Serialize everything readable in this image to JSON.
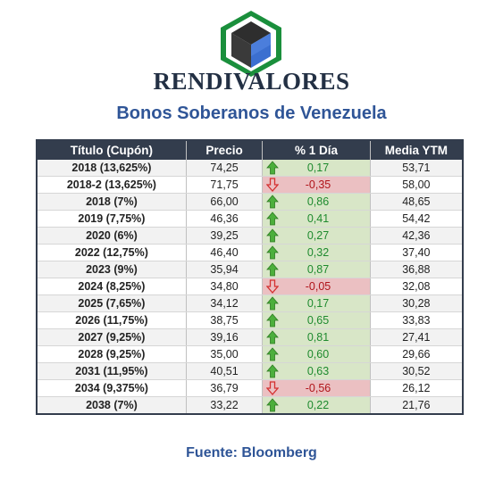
{
  "brand": {
    "name": "RENDIVALORES"
  },
  "title": "Bonos Soberanos de Venezuela",
  "table": {
    "headers": [
      "Título (Cupón)",
      "Precio",
      "% 1 Día",
      "Media YTM"
    ],
    "rows": [
      {
        "titulo": "2018 (13,625%)",
        "precio": "74,25",
        "cambio": "0,17",
        "dir": "up",
        "ytm": "53,71"
      },
      {
        "titulo": "2018-2 (13,625%)",
        "precio": "71,75",
        "cambio": "-0,35",
        "dir": "down",
        "ytm": "58,00"
      },
      {
        "titulo": "2018 (7%)",
        "precio": "66,00",
        "cambio": "0,86",
        "dir": "up",
        "ytm": "48,65"
      },
      {
        "titulo": "2019 (7,75%)",
        "precio": "46,36",
        "cambio": "0,41",
        "dir": "up",
        "ytm": "54,42"
      },
      {
        "titulo": "2020 (6%)",
        "precio": "39,25",
        "cambio": "0,27",
        "dir": "up",
        "ytm": "42,36"
      },
      {
        "titulo": "2022 (12,75%)",
        "precio": "46,40",
        "cambio": "0,32",
        "dir": "up",
        "ytm": "37,40"
      },
      {
        "titulo": "2023 (9%)",
        "precio": "35,94",
        "cambio": "0,87",
        "dir": "up",
        "ytm": "36,88"
      },
      {
        "titulo": "2024 (8,25%)",
        "precio": "34,80",
        "cambio": "-0,05",
        "dir": "down",
        "ytm": "32,08"
      },
      {
        "titulo": "2025 (7,65%)",
        "precio": "34,12",
        "cambio": "0,17",
        "dir": "up",
        "ytm": "30,28"
      },
      {
        "titulo": "2026 (11,75%)",
        "precio": "38,75",
        "cambio": "0,65",
        "dir": "up",
        "ytm": "33,83"
      },
      {
        "titulo": "2027 (9,25%)",
        "precio": "39,16",
        "cambio": "0,81",
        "dir": "up",
        "ytm": "27,41"
      },
      {
        "titulo": "2028 (9,25%)",
        "precio": "35,00",
        "cambio": "0,60",
        "dir": "up",
        "ytm": "29,66"
      },
      {
        "titulo": "2031 (11,95%)",
        "precio": "40,51",
        "cambio": "0,63",
        "dir": "up",
        "ytm": "30,52"
      },
      {
        "titulo": "2034 (9,375%)",
        "precio": "36,79",
        "cambio": "-0,56",
        "dir": "down",
        "ytm": "26,12"
      },
      {
        "titulo": "2038 (7%)",
        "precio": "33,22",
        "cambio": "0,22",
        "dir": "up",
        "ytm": "21,76"
      }
    ]
  },
  "source": "Fuente: Bloomberg",
  "colors": {
    "header_bg": "#333d4d",
    "title": "#2f5597",
    "up_fill": "#d8e6c7",
    "down_fill": "#ebc0c2",
    "up_text": "#1e8a2e",
    "down_text": "#b0141a"
  },
  "icons": {
    "up": "green-up-arrow-icon",
    "down": "red-down-arrow-icon",
    "logo": "cube-hexagon-logo"
  }
}
